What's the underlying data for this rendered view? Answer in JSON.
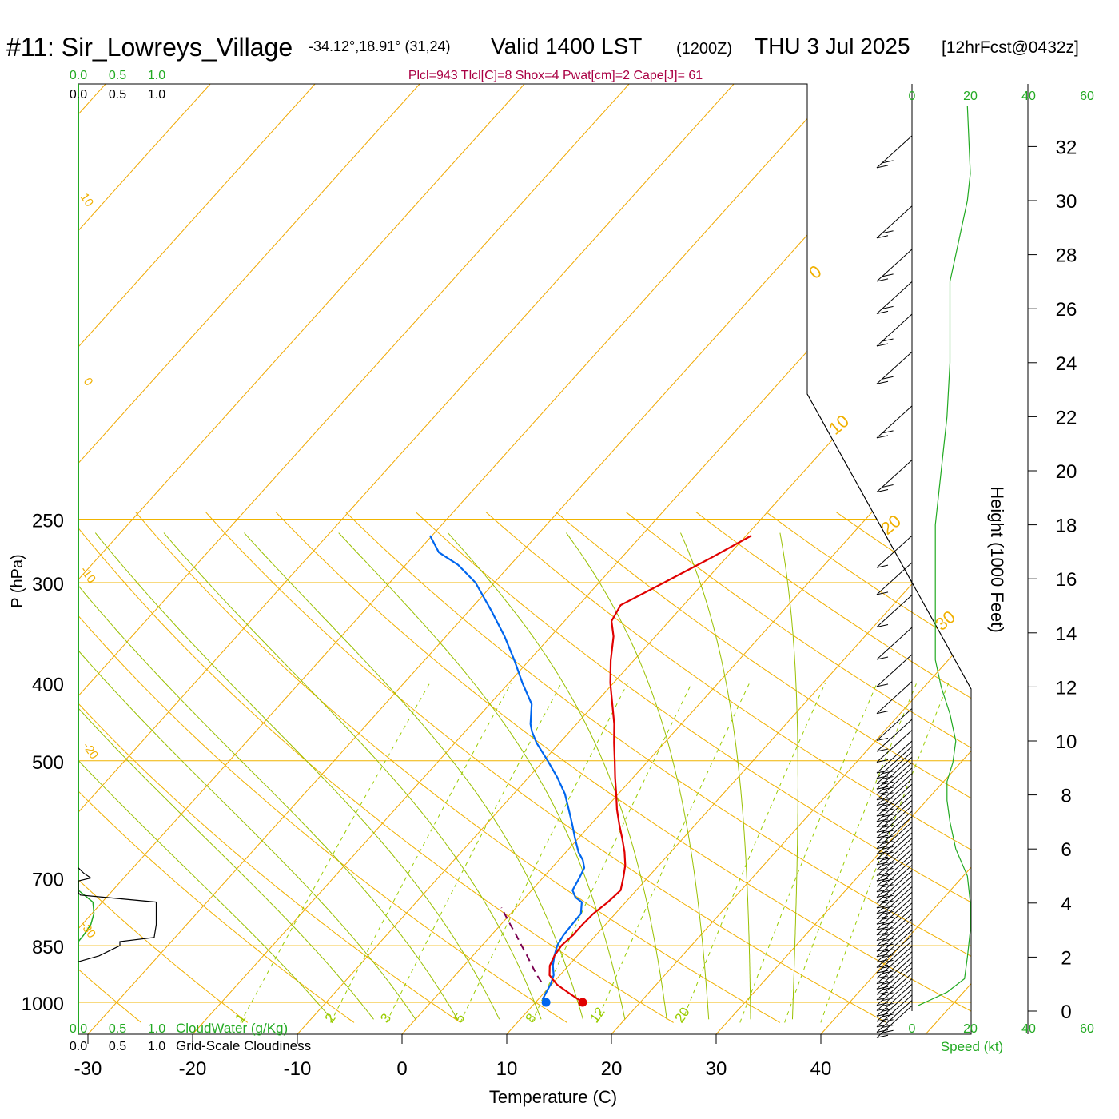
{
  "header": {
    "station": "#11: Sir_Lowreys_Village",
    "coords": "-34.12°,18.91° (31,24)",
    "valid": "Valid 1400 LST",
    "zulu": "(1200Z)",
    "date": "THU 3 Jul 2025",
    "forecast": "[12hrFcst@0432z]",
    "indices": "Plcl=943 Tlcl[C]=8 Shox=4 Pwat[cm]=2 Cape[J]= 61"
  },
  "colors": {
    "temperature": "#e00000",
    "dewpoint": "#0066ee",
    "parcel": "#7a0050",
    "isotherm": "#f0a800",
    "isobar": "#f0b400",
    "dry_adiabat": "#f0b000",
    "moist_adiabat": "#99c000",
    "mixing_ratio": "#99cc00",
    "cloudwater": "#22aa22",
    "cloudiness": "#000000",
    "wind_speed": "#22aa22",
    "indices_text": "#aa0044"
  },
  "chart_data": {
    "type": "skew-t",
    "xlabel": "Temperature (C)",
    "ylabel": "P (hPa)",
    "y2label": "Height (1000 Feet)",
    "x_range": [
      -35,
      45
    ],
    "y_range_hPa": [
      250,
      1050
    ],
    "y_scale": "log",
    "pressure_ticks": [
      250,
      300,
      400,
      500,
      700,
      850,
      1000
    ],
    "temperature_ticks": [
      -30,
      -20,
      -10,
      0,
      10,
      20,
      30,
      40
    ],
    "temperature_tick_labels": [
      "-30",
      "-20",
      "-10",
      "0",
      "10",
      "20",
      "30",
      "40"
    ],
    "height_ticks": [
      0,
      2,
      4,
      6,
      8,
      10,
      12,
      14,
      16,
      18,
      20,
      22,
      24,
      26,
      28,
      30,
      32
    ],
    "height_tick_labels": [
      "0",
      "2",
      "4",
      "6",
      "8",
      "10",
      "12",
      "14",
      "16",
      "18",
      "20",
      "22",
      "24",
      "26",
      "28",
      "30",
      "32"
    ],
    "dry_adiabat_labels": [
      "10",
      "0",
      "-10",
      "-20",
      "-30",
      "0",
      "10",
      "20",
      "30"
    ],
    "mixing_ratio_labels": [
      "1",
      "2",
      "3",
      "5",
      "8",
      "12",
      "20"
    ],
    "temperature_profile": [
      {
        "p": 1000,
        "t": 14.5
      },
      {
        "p": 975,
        "t": 12.5
      },
      {
        "p": 950,
        "t": 10.5
      },
      {
        "p": 925,
        "t": 9.0
      },
      {
        "p": 900,
        "t": 8.2
      },
      {
        "p": 875,
        "t": 7.8
      },
      {
        "p": 850,
        "t": 7.6
      },
      {
        "p": 825,
        "t": 7.8
      },
      {
        "p": 800,
        "t": 7.8
      },
      {
        "p": 775,
        "t": 7.9
      },
      {
        "p": 750,
        "t": 8.3
      },
      {
        "p": 725,
        "t": 8.5
      },
      {
        "p": 700,
        "t": 7.7
      },
      {
        "p": 675,
        "t": 6.8
      },
      {
        "p": 650,
        "t": 5.6
      },
      {
        "p": 625,
        "t": 4.2
      },
      {
        "p": 600,
        "t": 2.7
      },
      {
        "p": 575,
        "t": 1.2
      },
      {
        "p": 550,
        "t": -0.2
      },
      {
        "p": 525,
        "t": -1.7
      },
      {
        "p": 500,
        "t": -3.2
      },
      {
        "p": 475,
        "t": -4.8
      },
      {
        "p": 450,
        "t": -6.4
      },
      {
        "p": 425,
        "t": -8.3
      },
      {
        "p": 400,
        "t": -10.3
      },
      {
        "p": 375,
        "t": -12.2
      },
      {
        "p": 350,
        "t": -14.0
      },
      {
        "p": 335,
        "t": -15.5
      },
      {
        "p": 320,
        "t": -16.0
      },
      {
        "p": 300,
        "t": -13.8
      },
      {
        "p": 280,
        "t": -11.5
      },
      {
        "p": 262,
        "t": -9.5
      }
    ],
    "dewpoint_profile": [
      {
        "p": 1000,
        "t": 11.0
      },
      {
        "p": 990,
        "t": 10.4
      },
      {
        "p": 975,
        "t": 10.2
      },
      {
        "p": 950,
        "t": 9.9
      },
      {
        "p": 925,
        "t": 9.4
      },
      {
        "p": 900,
        "t": 8.5
      },
      {
        "p": 875,
        "t": 7.8
      },
      {
        "p": 850,
        "t": 7.2
      },
      {
        "p": 825,
        "t": 6.9
      },
      {
        "p": 800,
        "t": 6.8
      },
      {
        "p": 775,
        "t": 6.7
      },
      {
        "p": 750,
        "t": 5.8
      },
      {
        "p": 740,
        "t": 4.8
      },
      {
        "p": 725,
        "t": 3.9
      },
      {
        "p": 700,
        "t": 3.5
      },
      {
        "p": 680,
        "t": 3.1
      },
      {
        "p": 665,
        "t": 2.3
      },
      {
        "p": 650,
        "t": 1.2
      },
      {
        "p": 625,
        "t": -0.3
      },
      {
        "p": 600,
        "t": -1.8
      },
      {
        "p": 575,
        "t": -3.4
      },
      {
        "p": 550,
        "t": -5.1
      },
      {
        "p": 525,
        "t": -7.2
      },
      {
        "p": 500,
        "t": -9.6
      },
      {
        "p": 475,
        "t": -12.2
      },
      {
        "p": 460,
        "t": -13.6
      },
      {
        "p": 450,
        "t": -14.4
      },
      {
        "p": 425,
        "t": -16.0
      },
      {
        "p": 400,
        "t": -18.7
      },
      {
        "p": 375,
        "t": -21.4
      },
      {
        "p": 350,
        "t": -24.4
      },
      {
        "p": 325,
        "t": -27.9
      },
      {
        "p": 300,
        "t": -31.8
      },
      {
        "p": 285,
        "t": -35.0
      },
      {
        "p": 275,
        "t": -37.9
      },
      {
        "p": 262,
        "t": -40.2
      }
    ],
    "parcel_profile": [
      {
        "p": 943,
        "t": 8.8
      },
      {
        "p": 925,
        "t": 7.8
      },
      {
        "p": 900,
        "t": 6.5
      },
      {
        "p": 875,
        "t": 5.2
      },
      {
        "p": 850,
        "t": 3.8
      },
      {
        "p": 825,
        "t": 2.4
      },
      {
        "p": 800,
        "t": 0.9
      },
      {
        "p": 775,
        "t": -0.6
      },
      {
        "p": 762,
        "t": -1.4
      }
    ],
    "surface_temperature": 14.5,
    "surface_dewpoint": 11.0,
    "cloudwater_scale": [
      "0.0",
      "0.5",
      "1.0"
    ],
    "cloudwater_label": "CloudWater (g/Kg)",
    "cloudiness_scale": [
      "0.0",
      "0.5",
      "1.0"
    ],
    "cloudiness_label": "Grid-Scale Cloudiness",
    "cloudwater_profile": [
      {
        "p": 725,
        "v": 0.0
      },
      {
        "p": 750,
        "v": 0.14
      },
      {
        "p": 775,
        "v": 0.15
      },
      {
        "p": 800,
        "v": 0.12
      },
      {
        "p": 825,
        "v": 0.05
      },
      {
        "p": 840,
        "v": 0.0
      }
    ],
    "cloudiness_profile": [
      {
        "p": 680,
        "v": 0.0
      },
      {
        "p": 690,
        "v": 0.05
      },
      {
        "p": 700,
        "v": 0.12
      },
      {
        "p": 706,
        "v": 0.0
      },
      {
        "p": 730,
        "v": 0.0
      },
      {
        "p": 735,
        "v": 0.02
      },
      {
        "p": 750,
        "v": 0.75
      },
      {
        "p": 800,
        "v": 0.75
      },
      {
        "p": 830,
        "v": 0.73
      },
      {
        "p": 840,
        "v": 0.4
      },
      {
        "p": 850,
        "v": 0.4
      },
      {
        "p": 875,
        "v": 0.2
      },
      {
        "p": 890,
        "v": 0.0
      }
    ],
    "wind_speed_axis_ticks": [
      "0",
      "20",
      "40",
      "60"
    ],
    "wind_speed_label": "Speed (kt)",
    "wind_profile": [
      {
        "h": 0.2,
        "spd": 2
      },
      {
        "h": 0.4,
        "spd": 6
      },
      {
        "h": 0.7,
        "spd": 12
      },
      {
        "h": 1.2,
        "spd": 18
      },
      {
        "h": 2.0,
        "spd": 19
      },
      {
        "h": 3.0,
        "spd": 20
      },
      {
        "h": 4.0,
        "spd": 20
      },
      {
        "h": 5.0,
        "spd": 19
      },
      {
        "h": 6.0,
        "spd": 15
      },
      {
        "h": 7.0,
        "spd": 13
      },
      {
        "h": 7.8,
        "spd": 12
      },
      {
        "h": 8.5,
        "spd": 12
      },
      {
        "h": 9.2,
        "spd": 14
      },
      {
        "h": 10.0,
        "spd": 15
      },
      {
        "h": 11.0,
        "spd": 13
      },
      {
        "h": 12.0,
        "spd": 10
      },
      {
        "h": 13.0,
        "spd": 8
      },
      {
        "h": 14.0,
        "spd": 8
      },
      {
        "h": 16.0,
        "spd": 8
      },
      {
        "h": 18.0,
        "spd": 8
      },
      {
        "h": 20.0,
        "spd": 10
      },
      {
        "h": 22.0,
        "spd": 12
      },
      {
        "h": 24.0,
        "spd": 13
      },
      {
        "h": 26.0,
        "spd": 13
      },
      {
        "h": 27.0,
        "spd": 13
      },
      {
        "h": 28.0,
        "spd": 15
      },
      {
        "h": 30.0,
        "spd": 19
      },
      {
        "h": 31.0,
        "spd": 20
      },
      {
        "h": 33.5,
        "spd": 19
      }
    ],
    "barb_heights": [
      0.2,
      0.4,
      0.6,
      0.8,
      1.0,
      1.2,
      1.4,
      1.6,
      1.8,
      2.0,
      2.2,
      2.4,
      2.6,
      2.8,
      3.0,
      3.2,
      3.4,
      3.6,
      3.8,
      4.0,
      4.2,
      4.4,
      4.6,
      4.8,
      5.0,
      5.2,
      5.4,
      5.6,
      5.8,
      6.0,
      6.2,
      6.4,
      6.6,
      6.8,
      7.0,
      7.2,
      7.4,
      7.6,
      7.8,
      8.0,
      8.2,
      8.4,
      8.6,
      8.8,
      9.0,
      9.2,
      9.4,
      9.6,
      9.8,
      10.0,
      10.4,
      10.8,
      11.2,
      12.2,
      13.2,
      14.2,
      15.4,
      16.6,
      17.6,
      20.4,
      22.4,
      24.4,
      25.8,
      27.0,
      28.2,
      29.8,
      32.4
    ]
  }
}
